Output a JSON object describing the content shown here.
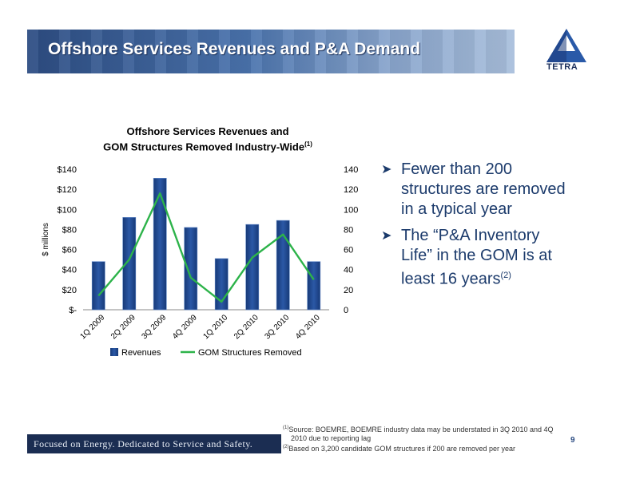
{
  "slide": {
    "title": "Offshore Services Revenues and P&A Demand",
    "logo_text": "TETRA",
    "page_number": "9",
    "tagline": "Focused on Energy. Dedicated to Service and Safety."
  },
  "bullets": [
    {
      "text": "Fewer than 200 structures are removed in a typical year",
      "sup": ""
    },
    {
      "text": "The “P&A Inventory Life” in the GOM is at least 16 years",
      "sup": "(2)"
    }
  ],
  "footnotes": {
    "fn1_mark": "(1)",
    "fn1_line1": "Source: BOEMRE, BOEMRE industry data may be understated in 3Q 2010 and 4Q",
    "fn1_line2": "2010 due to reporting lag",
    "fn2_mark": "(2)",
    "fn2_text": "Based on 3,200 candidate GOM structures if 200 are removed per year"
  },
  "chart_data": {
    "type": "bar",
    "title_line1": "Offshore Services Revenues and",
    "title_line2": "GOM Structures Removed Industry-Wide",
    "title_sup": "(1)",
    "ylabel": "$ millions",
    "categories": [
      "1Q 2009",
      "2Q 2009",
      "3Q 2009",
      "4Q 2009",
      "1Q 2010",
      "2Q 2010",
      "3Q 2010",
      "4Q 2010"
    ],
    "series": [
      {
        "name": "Revenues",
        "type": "bar",
        "axis": "left",
        "values": [
          48,
          92,
          131,
          82,
          51,
          85,
          89,
          48
        ]
      },
      {
        "name": "GOM Structures Removed",
        "type": "line",
        "axis": "right",
        "values": [
          14,
          50,
          116,
          32,
          8,
          52,
          75,
          30
        ]
      }
    ],
    "ylim_left": [
      0,
      140
    ],
    "ylim_right": [
      0,
      140
    ],
    "left_ticks": [
      "$-",
      "$20",
      "$40",
      "$60",
      "$80",
      "$100",
      "$120",
      "$140"
    ],
    "right_ticks": [
      "0",
      "20",
      "40",
      "60",
      "80",
      "100",
      "120",
      "140"
    ],
    "legend_position": "bottom",
    "colors": {
      "bar": "#2b58a6",
      "bar_dark": "#173a78",
      "line": "#2db34a"
    }
  }
}
